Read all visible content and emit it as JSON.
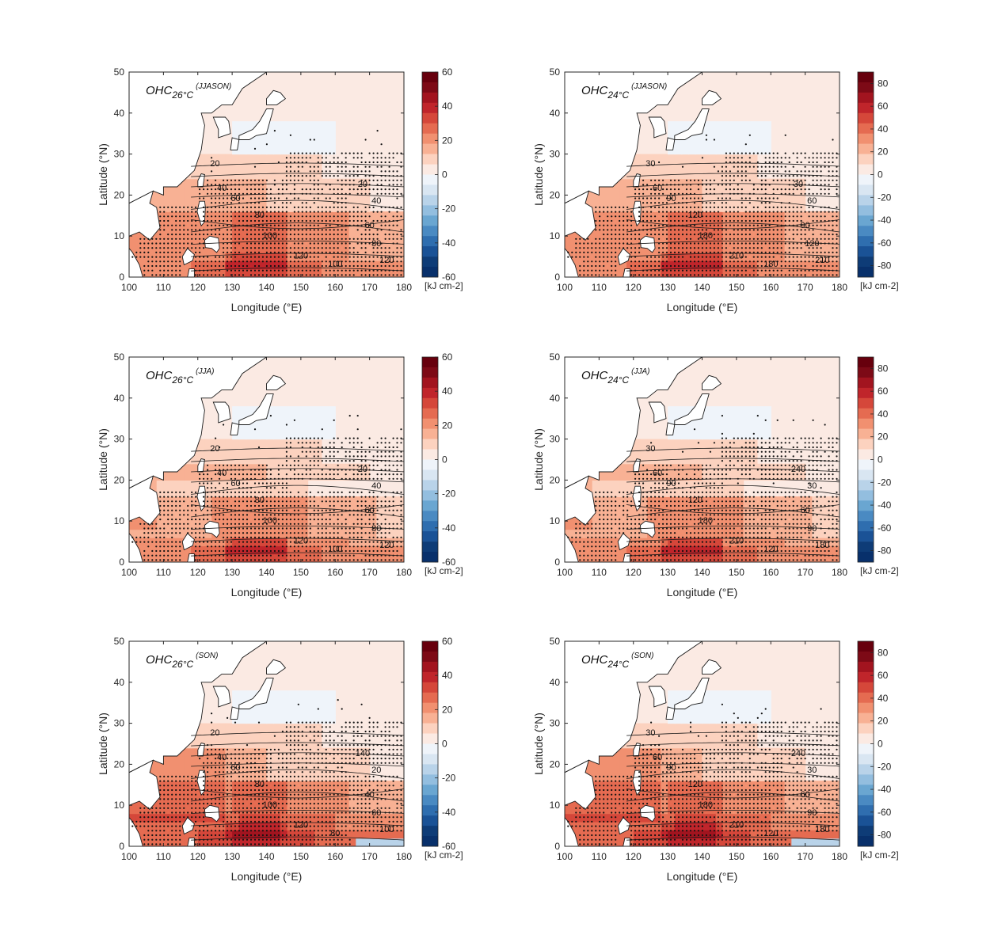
{
  "chart_data": [
    {
      "type": "heatmap",
      "title_main": "OHC",
      "title_sub": "26°C",
      "title_period": "(JJASON)",
      "xlabel": "Longitude (°E)",
      "ylabel": "Latitude (°N)",
      "xlim": [
        100,
        180
      ],
      "ylim": [
        0,
        50
      ],
      "xticks": [
        100,
        110,
        120,
        130,
        140,
        150,
        160,
        170,
        180
      ],
      "yticks": [
        0,
        10,
        20,
        30,
        40,
        50
      ],
      "colorbar": {
        "ticks": [
          60,
          40,
          20,
          0,
          -20,
          -40,
          -60
        ],
        "min": -60,
        "max": 60,
        "unit": "[kJ cm-2]"
      },
      "contour_labels": [
        "20",
        "40",
        "60",
        "80",
        "100",
        "120"
      ]
    },
    {
      "type": "heatmap",
      "title_main": "OHC",
      "title_sub": "24°C",
      "title_period": "(JJASON)",
      "xlabel": "Longitude (°E)",
      "ylabel": "Latitude (°N)",
      "xlim": [
        100,
        180
      ],
      "ylim": [
        0,
        50
      ],
      "xticks": [
        100,
        110,
        120,
        130,
        140,
        150,
        160,
        170,
        180
      ],
      "yticks": [
        0,
        10,
        20,
        30,
        40,
        50
      ],
      "colorbar": {
        "ticks": [
          80,
          60,
          40,
          20,
          0,
          -20,
          -40,
          -60,
          -80
        ],
        "min": -90,
        "max": 90,
        "unit": "[kJ cm-2]"
      },
      "contour_labels": [
        "30",
        "60",
        "90",
        "120",
        "180",
        "210"
      ]
    },
    {
      "type": "heatmap",
      "title_main": "OHC",
      "title_sub": "26°C",
      "title_period": "(JJA)",
      "xlabel": "Longitude (°E)",
      "ylabel": "Latitude (°N)",
      "xlim": [
        100,
        180
      ],
      "ylim": [
        0,
        50
      ],
      "xticks": [
        100,
        110,
        120,
        130,
        140,
        150,
        160,
        170,
        180
      ],
      "yticks": [
        0,
        10,
        20,
        30,
        40,
        50
      ],
      "colorbar": {
        "ticks": [
          60,
          40,
          20,
          0,
          -20,
          -40,
          -60
        ],
        "min": -60,
        "max": 60,
        "unit": "[kJ cm-2]"
      },
      "contour_labels": [
        "20",
        "40",
        "60",
        "80",
        "100",
        "120"
      ]
    },
    {
      "type": "heatmap",
      "title_main": "OHC",
      "title_sub": "24°C",
      "title_period": "(JJA)",
      "xlabel": "Longitude (°E)",
      "ylabel": "Latitude (°N)",
      "xlim": [
        100,
        180
      ],
      "ylim": [
        0,
        50
      ],
      "xticks": [
        100,
        110,
        120,
        130,
        140,
        150,
        160,
        170,
        180
      ],
      "yticks": [
        0,
        10,
        20,
        30,
        40,
        50
      ],
      "colorbar": {
        "ticks": [
          80,
          60,
          40,
          20,
          0,
          -20,
          -40,
          -60,
          -80
        ],
        "min": -90,
        "max": 90,
        "unit": "[kJ cm-2]"
      },
      "contour_labels": [
        "30",
        "60",
        "90",
        "120",
        "180",
        "210",
        "240"
      ]
    },
    {
      "type": "heatmap",
      "title_main": "OHC",
      "title_sub": "26°C",
      "title_period": "(SON)",
      "xlabel": "Longitude (°E)",
      "ylabel": "Latitude (°N)",
      "xlim": [
        100,
        180
      ],
      "ylim": [
        0,
        50
      ],
      "xticks": [
        100,
        110,
        120,
        130,
        140,
        150,
        160,
        170,
        180
      ],
      "yticks": [
        0,
        10,
        20,
        30,
        40,
        50
      ],
      "colorbar": {
        "ticks": [
          60,
          40,
          20,
          0,
          -20,
          -40,
          -60
        ],
        "min": -60,
        "max": 60,
        "unit": "[kJ cm-2]"
      },
      "contour_labels": [
        "20",
        "40",
        "60",
        "80",
        "100",
        "120",
        "140"
      ]
    },
    {
      "type": "heatmap",
      "title_main": "OHC",
      "title_sub": "24°C",
      "title_period": "(SON)",
      "xlabel": "Longitude (°E)",
      "ylabel": "Latitude (°N)",
      "xlim": [
        100,
        180
      ],
      "ylim": [
        0,
        50
      ],
      "xticks": [
        100,
        110,
        120,
        130,
        140,
        150,
        160,
        170,
        180
      ],
      "yticks": [
        0,
        10,
        20,
        30,
        40,
        50
      ],
      "colorbar": {
        "ticks": [
          80,
          60,
          40,
          20,
          0,
          -20,
          -40,
          -60,
          -80
        ],
        "min": -90,
        "max": 90,
        "unit": "[kJ cm-2]"
      },
      "contour_labels": [
        "30",
        "60",
        "90",
        "120",
        "180",
        "210",
        "240"
      ]
    }
  ],
  "colors": {
    "positive": [
      "#fbeae3",
      "#fcd2bf",
      "#f8b194",
      "#f19070",
      "#e56b51",
      "#d5473a",
      "#c0252b",
      "#a2141f",
      "#7d0a16",
      "#67000d"
    ],
    "negative": [
      "#eff4fa",
      "#d9e6f2",
      "#b9d3e9",
      "#93bedf",
      "#6aa6d1",
      "#4a8ac2",
      "#2f6eaf",
      "#1a5296",
      "#0e3c77",
      "#08306b"
    ],
    "land": "#ffffff",
    "axis": "#262626"
  }
}
